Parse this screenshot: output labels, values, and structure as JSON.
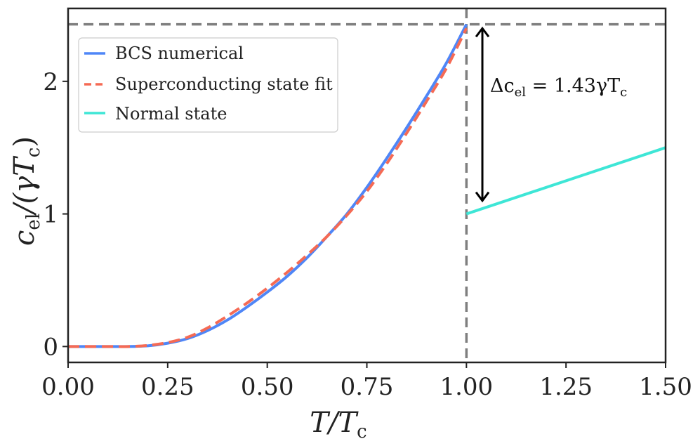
{
  "chart_data": {
    "type": "line",
    "xlabel": "T/T_c",
    "ylabel": "c_el/(γT_c)",
    "xlim": [
      0.0,
      1.5
    ],
    "ylim": [
      -0.12,
      2.55
    ],
    "x_ticks": [
      {
        "value": 0.0,
        "label": "0.00"
      },
      {
        "value": 0.25,
        "label": "0.25"
      },
      {
        "value": 0.5,
        "label": "0.50"
      },
      {
        "value": 0.75,
        "label": "0.75"
      },
      {
        "value": 1.0,
        "label": "1.00"
      },
      {
        "value": 1.25,
        "label": "1.25"
      },
      {
        "value": 1.5,
        "label": "1.50"
      }
    ],
    "y_ticks": [
      {
        "value": 0,
        "label": "0"
      },
      {
        "value": 1,
        "label": "1"
      },
      {
        "value": 2,
        "label": "2"
      }
    ],
    "grid": false,
    "legend_position": "top-left",
    "series": [
      {
        "name": "BCS numerical",
        "color": "#4f86f7",
        "style": "solid",
        "x": [
          0.0,
          0.1,
          0.15,
          0.2,
          0.25,
          0.3,
          0.35,
          0.4,
          0.45,
          0.5,
          0.55,
          0.6,
          0.65,
          0.7,
          0.75,
          0.8,
          0.85,
          0.9,
          0.95,
          1.0
        ],
        "y": [
          0.0,
          0.0,
          0.0,
          0.005,
          0.025,
          0.06,
          0.12,
          0.2,
          0.3,
          0.41,
          0.53,
          0.67,
          0.83,
          1.0,
          1.2,
          1.42,
          1.65,
          1.89,
          2.14,
          2.43
        ]
      },
      {
        "name": "Superconducting state fit",
        "color": "#f56a54",
        "style": "dashed",
        "x": [
          0.0,
          0.1,
          0.15,
          0.2,
          0.25,
          0.3,
          0.35,
          0.4,
          0.45,
          0.5,
          0.55,
          0.6,
          0.65,
          0.7,
          0.75,
          0.8,
          0.85,
          0.9,
          0.95,
          1.0
        ],
        "y": [
          0.0,
          0.0,
          0.0,
          0.008,
          0.03,
          0.07,
          0.14,
          0.23,
          0.33,
          0.44,
          0.56,
          0.69,
          0.83,
          0.99,
          1.17,
          1.38,
          1.61,
          1.85,
          2.1,
          2.4
        ]
      },
      {
        "name": "Normal state",
        "color": "#3ee6d6",
        "style": "solid",
        "x": [
          1.0,
          1.5
        ],
        "y": [
          1.0,
          1.5
        ]
      }
    ],
    "reference_lines": [
      {
        "orientation": "vertical",
        "value": 1.0,
        "color": "#7f7f7f",
        "style": "dashed"
      },
      {
        "orientation": "horizontal",
        "value": 2.43,
        "color": "#7f7f7f",
        "style": "dashed"
      }
    ],
    "annotations": [
      {
        "type": "double-arrow",
        "x": 1.04,
        "y_from": 1.1,
        "y_to": 2.4,
        "color": "#000000"
      },
      {
        "type": "text",
        "text": "Δc_el = 1.43γT_c",
        "x": 1.06,
        "y": 1.97
      }
    ]
  },
  "labels": {
    "annotation": "Δc",
    "annotation_sub": "el",
    "annotation_rest": " = 1.43γT",
    "annotation_sub2": "c",
    "xlabel_main": "T/T",
    "xlabel_sub": "c",
    "ylabel_c": "c",
    "ylabel_el": "el",
    "ylabel_mid": "/(γT",
    "ylabel_c2": "c",
    "ylabel_close": ")"
  }
}
